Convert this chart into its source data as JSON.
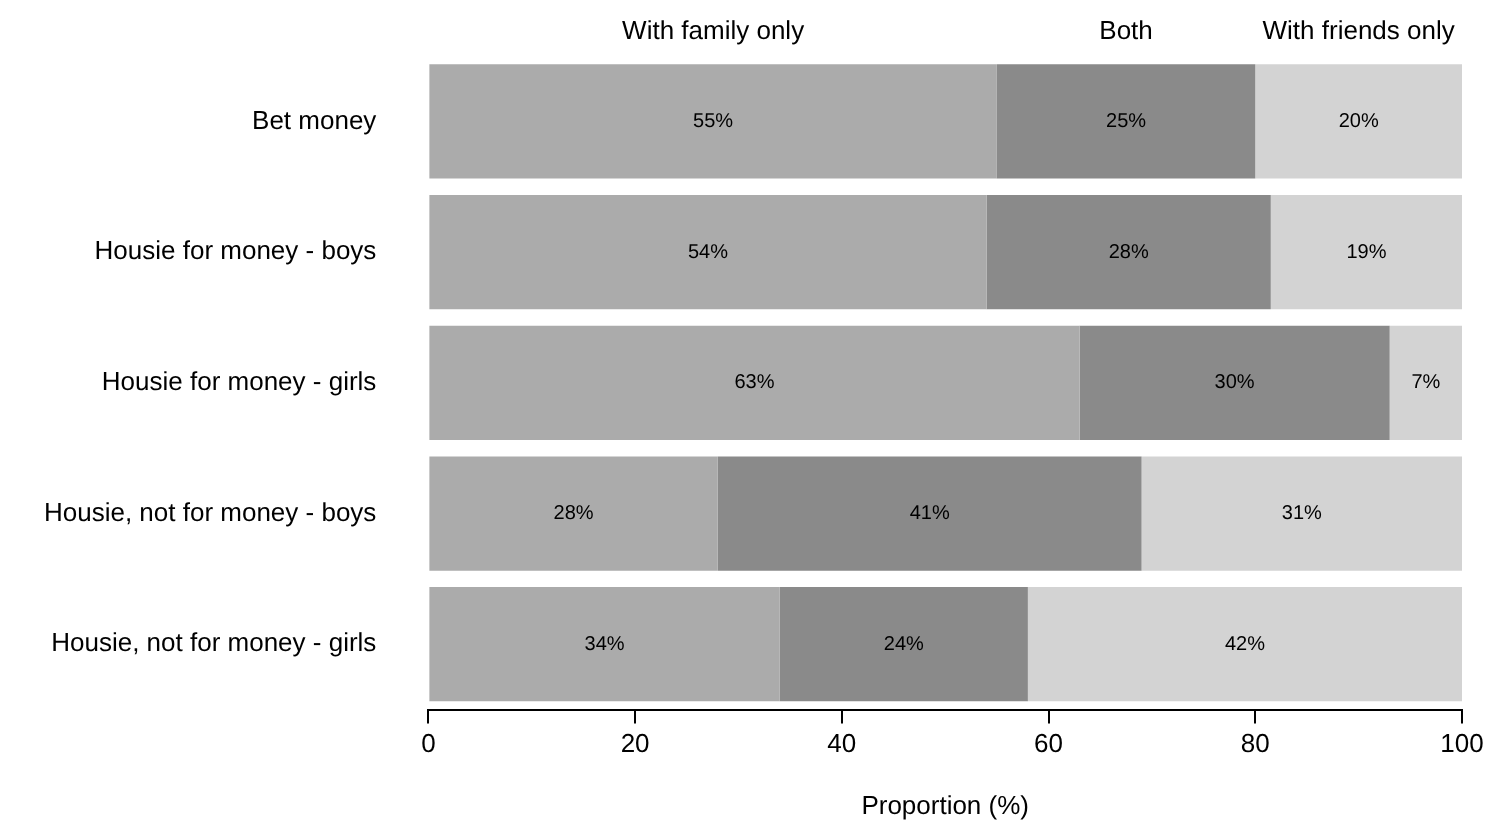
{
  "chart_data": {
    "type": "bar",
    "orientation": "horizontal",
    "stacked": true,
    "legend": "top",
    "grid": false,
    "categories": [
      "Bet money",
      "Housie for money - boys",
      "Housie for money - girls",
      "Housie, not for money - boys",
      "Housie, not for money - girls"
    ],
    "series": [
      {
        "name": "With family only",
        "color": "#ababab",
        "values": [
          55,
          54,
          63,
          28,
          34
        ],
        "value_labels": [
          "55%",
          "54%",
          "63%",
          "28%",
          "34%"
        ]
      },
      {
        "name": "Both",
        "color": "#8a8a8a",
        "values": [
          25,
          27.5,
          30,
          41,
          24
        ],
        "value_labels": [
          "25%",
          "28%",
          "30%",
          "41%",
          "24%"
        ]
      },
      {
        "name": "With friends only",
        "color": "#d3d3d3",
        "values": [
          20,
          18.5,
          7,
          31,
          42
        ],
        "value_labels": [
          "20%",
          "19%",
          "7%",
          "31%",
          "42%"
        ]
      }
    ],
    "xlim": [
      0,
      100
    ],
    "xticks": [
      0,
      20,
      40,
      60,
      80,
      100
    ],
    "xlabel": "Proportion (%)"
  }
}
